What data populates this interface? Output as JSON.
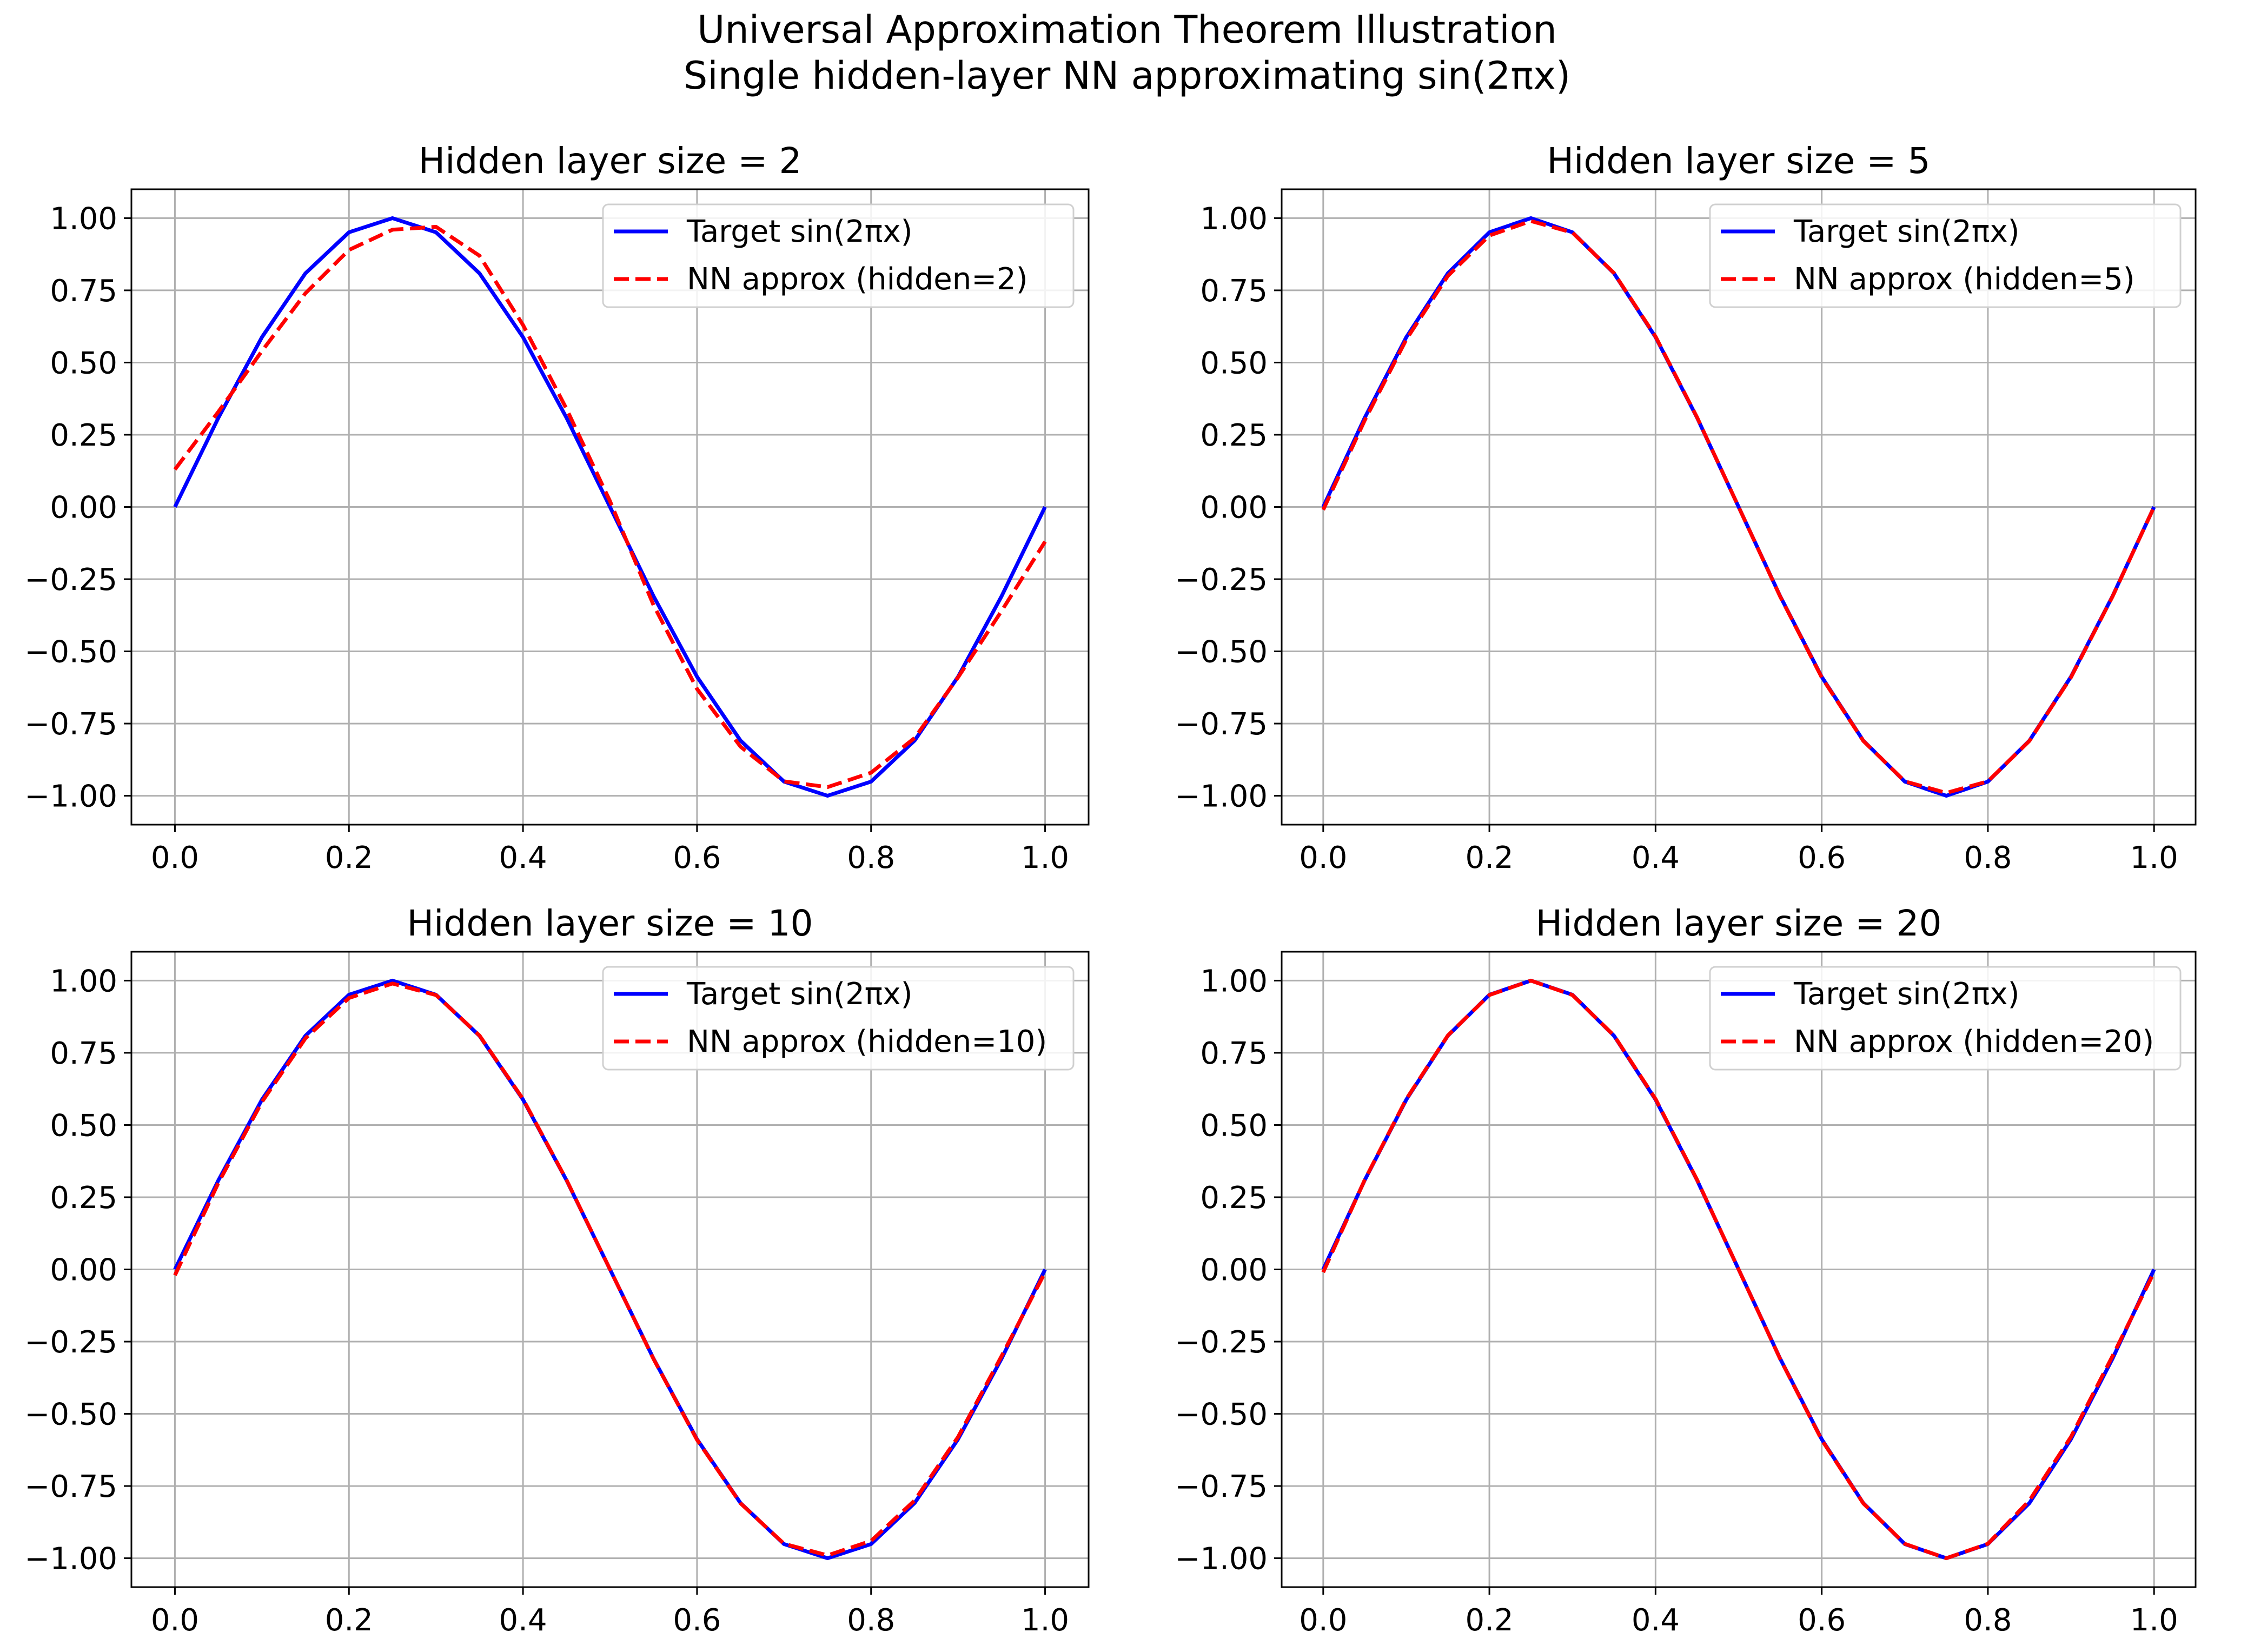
{
  "figure": {
    "title_line1": "Universal Approximation Theorem Illustration",
    "title_line2": "Single hidden-layer NN approximating sin(2πx)"
  },
  "colors": {
    "target": "#0000ff",
    "approx": "#ff0000",
    "grid": "#b0b0b0",
    "axes": "#000000"
  },
  "chart_data": [
    {
      "type": "line",
      "title": "Hidden layer size = 2",
      "xlim": [
        -0.05,
        1.05
      ],
      "ylim": [
        -1.1,
        1.1
      ],
      "xticks": [
        0.0,
        0.2,
        0.4,
        0.6,
        0.8,
        1.0
      ],
      "xtick_labels": [
        "0.0",
        "0.2",
        "0.4",
        "0.6",
        "0.8",
        "1.0"
      ],
      "yticks": [
        1.0,
        0.75,
        0.5,
        0.25,
        0.0,
        -0.25,
        -0.5,
        -0.75,
        -1.0
      ],
      "ytick_labels": [
        "1.00",
        "0.75",
        "0.50",
        "0.25",
        "0.00",
        "−0.25",
        "−0.50",
        "−0.75",
        "−1.00"
      ],
      "grid": true,
      "legend_position": "upper-right",
      "x": [
        0.0,
        0.05,
        0.1,
        0.15,
        0.2,
        0.25,
        0.3,
        0.35,
        0.4,
        0.45,
        0.5,
        0.55,
        0.6,
        0.65,
        0.7,
        0.75,
        0.8,
        0.85,
        0.9,
        0.95,
        1.0
      ],
      "series": [
        {
          "name": "Target sin(2πx)",
          "style": "solid",
          "values": [
            0.0,
            0.309,
            0.588,
            0.809,
            0.951,
            1.0,
            0.951,
            0.809,
            0.588,
            0.309,
            0.0,
            -0.309,
            -0.588,
            -0.809,
            -0.951,
            -1.0,
            -0.951,
            -0.809,
            -0.588,
            -0.309,
            0.0
          ]
        },
        {
          "name": "NN approx (hidden=2)",
          "style": "dashed",
          "values": [
            0.13,
            0.33,
            0.54,
            0.74,
            0.89,
            0.96,
            0.97,
            0.87,
            0.63,
            0.34,
            0.02,
            -0.34,
            -0.63,
            -0.83,
            -0.95,
            -0.97,
            -0.92,
            -0.8,
            -0.59,
            -0.36,
            -0.12
          ]
        }
      ]
    },
    {
      "type": "line",
      "title": "Hidden layer size = 5",
      "xlim": [
        -0.05,
        1.05
      ],
      "ylim": [
        -1.1,
        1.1
      ],
      "xticks": [
        0.0,
        0.2,
        0.4,
        0.6,
        0.8,
        1.0
      ],
      "xtick_labels": [
        "0.0",
        "0.2",
        "0.4",
        "0.6",
        "0.8",
        "1.0"
      ],
      "yticks": [
        1.0,
        0.75,
        0.5,
        0.25,
        0.0,
        -0.25,
        -0.5,
        -0.75,
        -1.0
      ],
      "ytick_labels": [
        "1.00",
        "0.75",
        "0.50",
        "0.25",
        "0.00",
        "−0.25",
        "−0.50",
        "−0.75",
        "−1.00"
      ],
      "grid": true,
      "legend_position": "upper-right",
      "x": [
        0.0,
        0.05,
        0.1,
        0.15,
        0.2,
        0.25,
        0.3,
        0.35,
        0.4,
        0.45,
        0.5,
        0.55,
        0.6,
        0.65,
        0.7,
        0.75,
        0.8,
        0.85,
        0.9,
        0.95,
        1.0
      ],
      "series": [
        {
          "name": "Target sin(2πx)",
          "style": "solid",
          "values": [
            0.0,
            0.309,
            0.588,
            0.809,
            0.951,
            1.0,
            0.951,
            0.809,
            0.588,
            0.309,
            0.0,
            -0.309,
            -0.588,
            -0.809,
            -0.951,
            -1.0,
            -0.951,
            -0.809,
            -0.588,
            -0.309,
            0.0
          ]
        },
        {
          "name": "NN approx (hidden=5)",
          "style": "dashed",
          "values": [
            -0.01,
            0.3,
            0.58,
            0.8,
            0.94,
            0.99,
            0.95,
            0.81,
            0.59,
            0.31,
            0.0,
            -0.31,
            -0.59,
            -0.81,
            -0.95,
            -0.99,
            -0.95,
            -0.81,
            -0.59,
            -0.31,
            0.0
          ]
        }
      ]
    },
    {
      "type": "line",
      "title": "Hidden layer size = 10",
      "xlim": [
        -0.05,
        1.05
      ],
      "ylim": [
        -1.1,
        1.1
      ],
      "xticks": [
        0.0,
        0.2,
        0.4,
        0.6,
        0.8,
        1.0
      ],
      "xtick_labels": [
        "0.0",
        "0.2",
        "0.4",
        "0.6",
        "0.8",
        "1.0"
      ],
      "yticks": [
        1.0,
        0.75,
        0.5,
        0.25,
        0.0,
        -0.25,
        -0.5,
        -0.75,
        -1.0
      ],
      "ytick_labels": [
        "1.00",
        "0.75",
        "0.50",
        "0.25",
        "0.00",
        "−0.25",
        "−0.50",
        "−0.75",
        "−1.00"
      ],
      "grid": true,
      "legend_position": "upper-right",
      "x": [
        0.0,
        0.05,
        0.1,
        0.15,
        0.2,
        0.25,
        0.3,
        0.35,
        0.4,
        0.45,
        0.5,
        0.55,
        0.6,
        0.65,
        0.7,
        0.75,
        0.8,
        0.85,
        0.9,
        0.95,
        1.0
      ],
      "series": [
        {
          "name": "Target sin(2πx)",
          "style": "solid",
          "values": [
            0.0,
            0.309,
            0.588,
            0.809,
            0.951,
            1.0,
            0.951,
            0.809,
            0.588,
            0.309,
            0.0,
            -0.309,
            -0.588,
            -0.809,
            -0.951,
            -1.0,
            -0.951,
            -0.809,
            -0.588,
            -0.309,
            0.0
          ]
        },
        {
          "name": "NN approx (hidden=10)",
          "style": "dashed",
          "values": [
            -0.02,
            0.3,
            0.58,
            0.8,
            0.94,
            0.99,
            0.95,
            0.81,
            0.59,
            0.31,
            0.0,
            -0.31,
            -0.59,
            -0.81,
            -0.95,
            -0.99,
            -0.94,
            -0.8,
            -0.58,
            -0.3,
            -0.01
          ]
        }
      ]
    },
    {
      "type": "line",
      "title": "Hidden layer size = 20",
      "xlim": [
        -0.05,
        1.05
      ],
      "ylim": [
        -1.1,
        1.1
      ],
      "xticks": [
        0.0,
        0.2,
        0.4,
        0.6,
        0.8,
        1.0
      ],
      "xtick_labels": [
        "0.0",
        "0.2",
        "0.4",
        "0.6",
        "0.8",
        "1.0"
      ],
      "yticks": [
        1.0,
        0.75,
        0.5,
        0.25,
        0.0,
        -0.25,
        -0.5,
        -0.75,
        -1.0
      ],
      "ytick_labels": [
        "1.00",
        "0.75",
        "0.50",
        "0.25",
        "0.00",
        "−0.25",
        "−0.50",
        "−0.75",
        "−1.00"
      ],
      "grid": true,
      "legend_position": "upper-right",
      "x": [
        0.0,
        0.05,
        0.1,
        0.15,
        0.2,
        0.25,
        0.3,
        0.35,
        0.4,
        0.45,
        0.5,
        0.55,
        0.6,
        0.65,
        0.7,
        0.75,
        0.8,
        0.85,
        0.9,
        0.95,
        1.0
      ],
      "series": [
        {
          "name": "Target sin(2πx)",
          "style": "solid",
          "values": [
            0.0,
            0.309,
            0.588,
            0.809,
            0.951,
            1.0,
            0.951,
            0.809,
            0.588,
            0.309,
            0.0,
            -0.309,
            -0.588,
            -0.809,
            -0.951,
            -1.0,
            -0.951,
            -0.809,
            -0.588,
            -0.309,
            0.0
          ]
        },
        {
          "name": "NN approx (hidden=20)",
          "style": "dashed",
          "values": [
            -0.01,
            0.31,
            0.59,
            0.81,
            0.95,
            1.0,
            0.95,
            0.81,
            0.59,
            0.31,
            0.0,
            -0.31,
            -0.59,
            -0.81,
            -0.95,
            -1.0,
            -0.95,
            -0.8,
            -0.58,
            -0.3,
            -0.01
          ]
        }
      ]
    }
  ]
}
